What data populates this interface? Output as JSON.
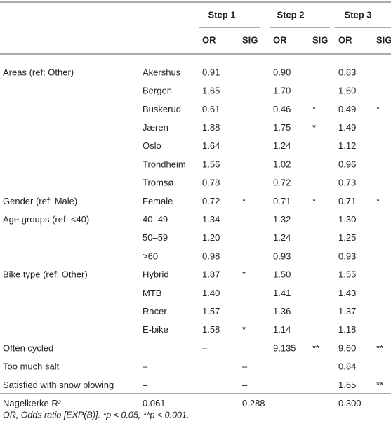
{
  "table": {
    "steps": [
      "Step 1",
      "Step 2",
      "Step 3"
    ],
    "subheaders": [
      "OR",
      "SIG",
      "OR",
      "SIG",
      "OR",
      "SIG"
    ],
    "rows": [
      [
        "Areas (ref: Other)",
        "Akershus",
        "0.91",
        null,
        "0.90",
        null,
        "0.83",
        null
      ],
      [
        null,
        "Bergen",
        "1.65",
        null,
        "1.70",
        null,
        "1.60",
        null
      ],
      [
        null,
        "Buskerud",
        "0.61",
        null,
        "0.46",
        "*",
        "0.49",
        "*"
      ],
      [
        null,
        "Jæren",
        "1.88",
        null,
        "1.75",
        "*",
        "1.49",
        null
      ],
      [
        null,
        "Oslo",
        "1.64",
        null,
        "1.24",
        null,
        "1.12",
        null
      ],
      [
        null,
        "Trondheim",
        "1.56",
        null,
        "1.02",
        null,
        "0.96",
        null
      ],
      [
        null,
        "Tromsø",
        "0.78",
        null,
        "0.72",
        null,
        "0.73",
        null
      ],
      [
        "Gender (ref: Male)",
        "Female",
        "0.72",
        "*",
        "0.71",
        "*",
        "0.71",
        "*"
      ],
      [
        "Age groups (ref: <40)",
        "40–49",
        "1.34",
        null,
        "1.32",
        null,
        "1.30",
        null
      ],
      [
        null,
        "50–59",
        "1.20",
        null,
        "1.24",
        null,
        "1.25",
        null
      ],
      [
        null,
        ">60",
        "0.98",
        null,
        "0.93",
        null,
        "0.93",
        null
      ],
      [
        "Bike type (ref: Other)",
        "Hybrid",
        "1.87",
        "*",
        "1.50",
        null,
        "1.55",
        null
      ],
      [
        null,
        "MTB",
        "1.40",
        null,
        "1.41",
        null,
        "1.43",
        null
      ],
      [
        null,
        "Racer",
        "1.57",
        null,
        "1.36",
        null,
        "1.37",
        null
      ],
      [
        null,
        "E-bike",
        "1.58",
        "*",
        "1.14",
        null,
        "1.18",
        null
      ],
      [
        "Often cycled",
        null,
        "–",
        null,
        "9.135",
        "**",
        "9.60",
        "**"
      ],
      [
        "Too much salt",
        "–",
        null,
        "–",
        null,
        null,
        "0.84",
        null
      ],
      [
        "Satisfied with snow plowing",
        "–",
        null,
        "–",
        null,
        null,
        "1.65",
        "**"
      ],
      [
        "Nagelkerke R²",
        "0.061",
        null,
        "0.288",
        null,
        null,
        "0.300",
        null
      ]
    ],
    "footnote": "OR, Odds ratio [EXP(B)]. *p < 0.05, **p < 0.001."
  }
}
